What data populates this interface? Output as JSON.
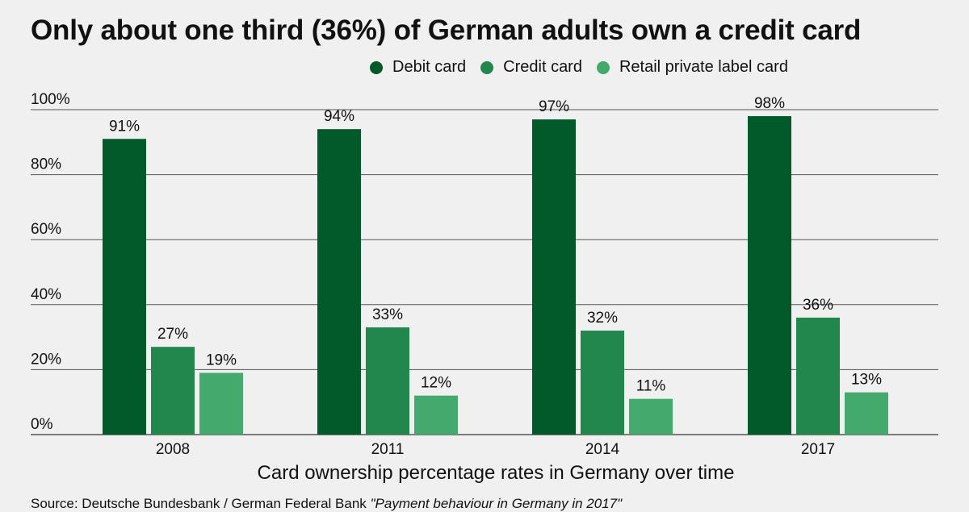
{
  "colors": {
    "debit": "#02592a",
    "credit": "#21874c",
    "retail": "#43a96c",
    "grid": "#555555",
    "background": "#eff0ef"
  },
  "chart_data": {
    "type": "bar",
    "title": "Only about one third (36%) of German adults own a credit card",
    "xlabel": "Card ownership percentage rates in Germany over time",
    "ylabel": "",
    "categories": [
      "2008",
      "2011",
      "2014",
      "2017"
    ],
    "ylim": [
      0,
      100
    ],
    "yticks": [
      0,
      20,
      40,
      60,
      80,
      100
    ],
    "ytick_labels": [
      "0%",
      "20%",
      "40%",
      "60%",
      "80%",
      "100%"
    ],
    "grid": true,
    "legend_position": "top-right",
    "value_suffix": "%",
    "series": [
      {
        "name": "Debit card",
        "color_key": "debit",
        "values": [
          91,
          94,
          97,
          98
        ]
      },
      {
        "name": "Credit card",
        "color_key": "credit",
        "values": [
          27,
          33,
          32,
          36
        ]
      },
      {
        "name": "Retail private label card",
        "color_key": "retail",
        "values": [
          19,
          12,
          11,
          13
        ]
      }
    ]
  },
  "source": {
    "prefix": "Source: Deutsche Bundesbank / German Federal Bank ",
    "publication": "\"Payment behaviour in Germany in 2017\""
  }
}
